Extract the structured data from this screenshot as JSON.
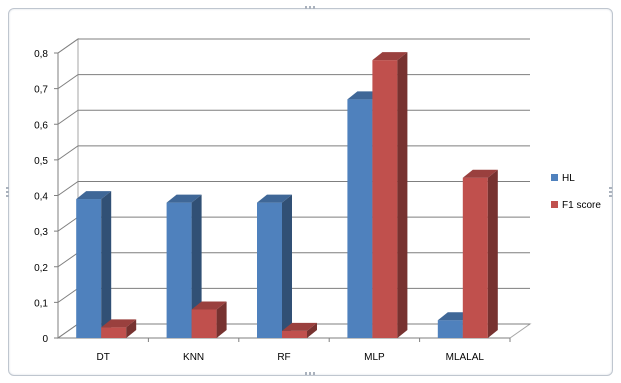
{
  "chart_data": {
    "type": "bar",
    "title": "",
    "xlabel": "",
    "ylabel": "",
    "categories": [
      "DT",
      "KNN",
      "RF",
      "MLP",
      "MLALAL"
    ],
    "series": [
      {
        "name": "HL",
        "values": [
          0.39,
          0.38,
          0.38,
          0.67,
          0.05
        ],
        "color": "#4f81bd"
      },
      {
        "name": "F1 score",
        "values": [
          0.03,
          0.08,
          0.02,
          0.78,
          0.45
        ],
        "color": "#c0504d"
      }
    ],
    "ylim": [
      0,
      0.8
    ],
    "yticks": [
      "0",
      "0,1",
      "0,2",
      "0,3",
      "0,4",
      "0,5",
      "0,6",
      "0,7",
      "0,8"
    ],
    "grid": true,
    "style": "3d-column",
    "legend_placement": "right"
  }
}
